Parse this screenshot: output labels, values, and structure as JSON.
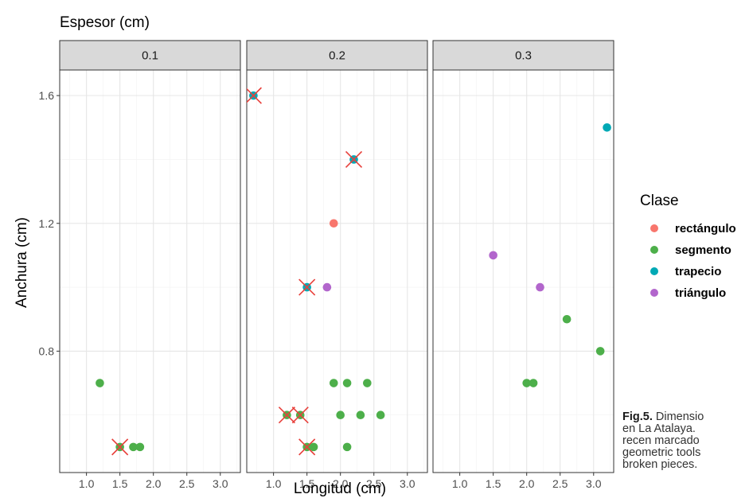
{
  "chart_data": {
    "type": "scatter",
    "title": "Espesor (cm)",
    "xlabel": "Longitud (cm)",
    "ylabel": "Anchura (cm)",
    "xlim": [
      0.6,
      3.3
    ],
    "ylim": [
      0.42,
      1.68
    ],
    "x_ticks": [
      "1.0",
      "1.5",
      "2.0",
      "2.5",
      "3.0"
    ],
    "y_ticks": [
      "0.8",
      "1.2",
      "1.6"
    ],
    "grid": true,
    "legend": {
      "title": "Clase",
      "placement": "right",
      "entries": [
        {
          "name": "rectángulo",
          "color": "#f8766d"
        },
        {
          "name": "segmento",
          "color": "#4daf4a"
        },
        {
          "name": "trapecio",
          "color": "#00a9b5"
        },
        {
          "name": "triángulo",
          "color": "#b266cc"
        }
      ]
    },
    "broken_marker_color": "#e8413c",
    "panels": [
      {
        "label": "0.1",
        "points": [
          {
            "x": 1.2,
            "y": 0.7,
            "clase": "segmento",
            "broken": false
          },
          {
            "x": 1.5,
            "y": 0.5,
            "clase": "segmento",
            "broken": true
          },
          {
            "x": 1.7,
            "y": 0.5,
            "clase": "segmento",
            "broken": false
          },
          {
            "x": 1.8,
            "y": 0.5,
            "clase": "segmento",
            "broken": false
          }
        ]
      },
      {
        "label": "0.2",
        "points": [
          {
            "x": 0.7,
            "y": 1.6,
            "clase": "trapecio",
            "broken": true
          },
          {
            "x": 2.2,
            "y": 1.4,
            "clase": "trapecio",
            "broken": true
          },
          {
            "x": 1.9,
            "y": 1.2,
            "clase": "rectángulo",
            "broken": false
          },
          {
            "x": 1.5,
            "y": 1.0,
            "clase": "trapecio",
            "broken": true
          },
          {
            "x": 1.8,
            "y": 1.0,
            "clase": "triángulo",
            "broken": false
          },
          {
            "x": 1.9,
            "y": 0.7,
            "clase": "segmento",
            "broken": false
          },
          {
            "x": 2.1,
            "y": 0.7,
            "clase": "segmento",
            "broken": false
          },
          {
            "x": 2.4,
            "y": 0.7,
            "clase": "segmento",
            "broken": false
          },
          {
            "x": 1.2,
            "y": 0.6,
            "clase": "segmento",
            "broken": true
          },
          {
            "x": 1.4,
            "y": 0.6,
            "clase": "segmento",
            "broken": true
          },
          {
            "x": 2.0,
            "y": 0.6,
            "clase": "segmento",
            "broken": false
          },
          {
            "x": 2.3,
            "y": 0.6,
            "clase": "segmento",
            "broken": false
          },
          {
            "x": 2.6,
            "y": 0.6,
            "clase": "segmento",
            "broken": false
          },
          {
            "x": 1.5,
            "y": 0.5,
            "clase": "segmento",
            "broken": true
          },
          {
            "x": 1.6,
            "y": 0.5,
            "clase": "segmento",
            "broken": false
          },
          {
            "x": 2.1,
            "y": 0.5,
            "clase": "segmento",
            "broken": false
          }
        ]
      },
      {
        "label": "0.3",
        "points": [
          {
            "x": 3.2,
            "y": 1.5,
            "clase": "trapecio",
            "broken": false
          },
          {
            "x": 1.5,
            "y": 1.1,
            "clase": "triángulo",
            "broken": false
          },
          {
            "x": 2.2,
            "y": 1.0,
            "clase": "triángulo",
            "broken": false
          },
          {
            "x": 2.6,
            "y": 0.9,
            "clase": "segmento",
            "broken": false
          },
          {
            "x": 3.1,
            "y": 0.8,
            "clase": "segmento",
            "broken": false
          },
          {
            "x": 2.0,
            "y": 0.7,
            "clase": "segmento",
            "broken": false
          },
          {
            "x": 2.1,
            "y": 0.7,
            "clase": "segmento",
            "broken": false
          }
        ]
      }
    ]
  },
  "caption": {
    "label": "Fig.5.",
    "line1": "Dimensio",
    "line2": "en La Atalaya.",
    "line3": "recen marcado",
    "line4": "geometric tools",
    "line5": "broken pieces."
  }
}
